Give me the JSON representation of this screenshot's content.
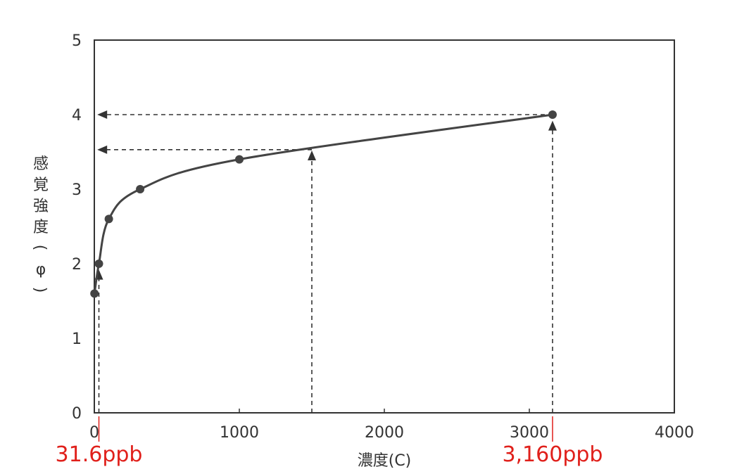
{
  "chart_data": {
    "type": "line",
    "xlabel": "濃度(C)",
    "ylabel": "感覚強度(φ)",
    "xlim": [
      0,
      4000
    ],
    "ylim": [
      0,
      5
    ],
    "xticks": [
      "0",
      "1000",
      "2000",
      "3000",
      "4000"
    ],
    "yticks": [
      "0",
      "1",
      "2",
      "3",
      "4",
      "5"
    ],
    "grid": false,
    "series": [
      {
        "points": [
          {
            "x": 1,
            "y": 1.6
          },
          {
            "x": 31.6,
            "y": 2.0
          },
          {
            "x": 100,
            "y": 2.6
          },
          {
            "x": 316,
            "y": 3.0
          },
          {
            "x": 1000,
            "y": 3.4
          },
          {
            "x": 3160,
            "y": 4.0
          }
        ]
      }
    ],
    "reference_lines": [
      {
        "from": [
          31.6,
          0
        ],
        "to": [
          31.6,
          1.9
        ],
        "arrow": "up"
      },
      {
        "from": [
          1500,
          0
        ],
        "to": [
          1500,
          3.5
        ],
        "arrow": "up"
      },
      {
        "from": [
          3160,
          0
        ],
        "to": [
          3160,
          3.9
        ],
        "arrow": "up"
      },
      {
        "from": [
          3160,
          4.0
        ],
        "to": [
          30,
          4.0
        ],
        "arrow": "left"
      },
      {
        "from": [
          1500,
          3.53
        ],
        "to": [
          30,
          3.53
        ],
        "arrow": "left"
      }
    ],
    "annotations": [
      {
        "text": "31.6ppb",
        "x": 31.6,
        "color": "#e0201b"
      },
      {
        "text": "3,160ppb",
        "x": 3160,
        "color": "#e0201b"
      }
    ],
    "colors": {
      "line": "#444444",
      "axis": "#333333",
      "annotation": "#e0201b"
    }
  }
}
